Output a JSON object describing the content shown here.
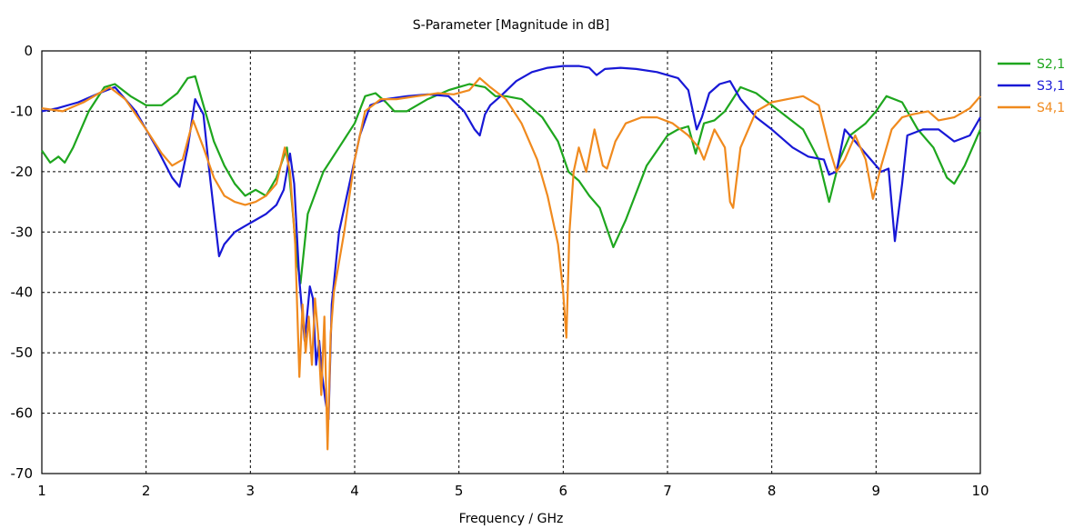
{
  "chart_data": {
    "type": "line",
    "title": "S-Parameter [Magnitude in dB]",
    "xlabel": "Frequency / GHz",
    "ylabel": "",
    "xlim": [
      1,
      10
    ],
    "ylim": [
      -70,
      0
    ],
    "xticks": [
      1,
      2,
      3,
      4,
      5,
      6,
      7,
      8,
      9,
      10
    ],
    "yticks": [
      0,
      -10,
      -20,
      -30,
      -40,
      -50,
      -60,
      -70
    ],
    "grid": true,
    "legend_position": "right",
    "series": [
      {
        "name": "S2,1",
        "color": "#1ea61e",
        "x": [
          1.0,
          1.08,
          1.16,
          1.22,
          1.3,
          1.45,
          1.6,
          1.7,
          1.85,
          2.0,
          2.15,
          2.3,
          2.4,
          2.47,
          2.55,
          2.65,
          2.75,
          2.85,
          2.95,
          3.05,
          3.15,
          3.25,
          3.35,
          3.45,
          3.48,
          3.55,
          3.7,
          3.85,
          4.0,
          4.1,
          4.2,
          4.3,
          4.38,
          4.5,
          4.7,
          4.9,
          5.1,
          5.25,
          5.35,
          5.45,
          5.6,
          5.8,
          5.95,
          6.05,
          6.15,
          6.25,
          6.35,
          6.48,
          6.6,
          6.8,
          7.0,
          7.1,
          7.2,
          7.27,
          7.35,
          7.45,
          7.55,
          7.7,
          7.85,
          8.0,
          8.15,
          8.3,
          8.45,
          8.55,
          8.65,
          8.75,
          8.9,
          9.0,
          9.1,
          9.25,
          9.4,
          9.55,
          9.68,
          9.75,
          9.85,
          10.0
        ],
        "y": [
          -16.5,
          -18.5,
          -17.5,
          -18.5,
          -16,
          -10,
          -6,
          -5.5,
          -7.5,
          -9,
          -9,
          -7,
          -4.5,
          -4.2,
          -9,
          -15,
          -19,
          -22,
          -24,
          -23,
          -24,
          -21,
          -16,
          -35,
          -38.5,
          -27,
          -20,
          -16,
          -12,
          -7.5,
          -7,
          -8.5,
          -10,
          -10,
          -8,
          -6.5,
          -5.5,
          -6,
          -7.5,
          -7.5,
          -8,
          -11,
          -15,
          -20,
          -21.5,
          -24,
          -26,
          -32.5,
          -28,
          -19,
          -14,
          -13,
          -12.5,
          -17,
          -12,
          -11.5,
          -10,
          -6,
          -7,
          -9,
          -11,
          -13,
          -18,
          -25,
          -18,
          -14,
          -12,
          -10,
          -7.5,
          -8.5,
          -13,
          -16,
          -21,
          -22,
          -19,
          -13
        ]
      },
      {
        "name": "S3,1",
        "color": "#1818d6",
        "x": [
          1.0,
          1.15,
          1.35,
          1.55,
          1.7,
          1.9,
          2.1,
          2.25,
          2.32,
          2.4,
          2.47,
          2.55,
          2.6,
          2.66,
          2.7,
          2.75,
          2.85,
          2.95,
          3.05,
          3.15,
          3.25,
          3.32,
          3.38,
          3.42,
          3.47,
          3.52,
          3.57,
          3.6,
          3.63,
          3.66,
          3.69,
          3.72,
          3.75,
          3.78,
          3.85,
          3.95,
          4.05,
          4.15,
          4.3,
          4.5,
          4.7,
          4.9,
          5.05,
          5.15,
          5.2,
          5.25,
          5.3,
          5.4,
          5.55,
          5.7,
          5.85,
          6.0,
          6.15,
          6.25,
          6.32,
          6.4,
          6.55,
          6.7,
          6.9,
          7.1,
          7.2,
          7.28,
          7.33,
          7.4,
          7.5,
          7.6,
          7.7,
          7.85,
          8.0,
          8.2,
          8.35,
          8.5,
          8.55,
          8.62,
          8.7,
          8.8,
          8.95,
          9.05,
          9.12,
          9.18,
          9.25,
          9.3,
          9.45,
          9.6,
          9.75,
          9.9,
          10.0
        ],
        "y": [
          -10,
          -9.5,
          -8.5,
          -7,
          -6,
          -10,
          -16,
          -21,
          -22.5,
          -16,
          -8,
          -10.5,
          -19,
          -28,
          -34,
          -32,
          -30,
          -29,
          -28,
          -27,
          -25.5,
          -23,
          -17,
          -22,
          -38,
          -48,
          -39,
          -41,
          -52,
          -48,
          -54,
          -58,
          -61,
          -42,
          -30,
          -22,
          -14,
          -9,
          -8,
          -7.5,
          -7.2,
          -7.5,
          -10,
          -13,
          -14,
          -10.5,
          -9,
          -7.5,
          -5,
          -3.5,
          -2.8,
          -2.5,
          -2.5,
          -2.8,
          -4,
          -3,
          -2.8,
          -3,
          -3.5,
          -4.5,
          -6.5,
          -13,
          -11,
          -7,
          -5.5,
          -5,
          -8,
          -11,
          -13,
          -16,
          -17.5,
          -18,
          -20.5,
          -20,
          -13,
          -15,
          -18,
          -20,
          -19.5,
          -31.5,
          -22,
          -14,
          -13,
          -13,
          -15,
          -14,
          -11
        ]
      },
      {
        "name": "S4,1",
        "color": "#f08a1e",
        "x": [
          1.0,
          1.2,
          1.4,
          1.55,
          1.65,
          1.8,
          2.0,
          2.15,
          2.25,
          2.35,
          2.45,
          2.55,
          2.65,
          2.75,
          2.85,
          2.95,
          3.05,
          3.15,
          3.25,
          3.33,
          3.38,
          3.43,
          3.47,
          3.5,
          3.53,
          3.56,
          3.59,
          3.62,
          3.65,
          3.68,
          3.71,
          3.74,
          3.77,
          3.8,
          3.9,
          4.0,
          4.1,
          4.25,
          4.4,
          4.6,
          4.8,
          4.95,
          5.1,
          5.2,
          5.3,
          5.45,
          5.6,
          5.75,
          5.85,
          5.95,
          6.0,
          6.03,
          6.06,
          6.1,
          6.15,
          6.22,
          6.3,
          6.38,
          6.42,
          6.5,
          6.6,
          6.75,
          6.9,
          7.05,
          7.2,
          7.3,
          7.35,
          7.45,
          7.55,
          7.6,
          7.63,
          7.7,
          7.85,
          8.0,
          8.15,
          8.3,
          8.45,
          8.55,
          8.62,
          8.7,
          8.8,
          8.9,
          8.97,
          9.05,
          9.15,
          9.25,
          9.35,
          9.5,
          9.6,
          9.75,
          9.9,
          10.0
        ],
        "y": [
          -9.5,
          -10,
          -8.5,
          -7,
          -6,
          -8,
          -13,
          -17,
          -19,
          -18,
          -11.5,
          -16,
          -21,
          -24,
          -25,
          -25.5,
          -25,
          -24,
          -22,
          -16,
          -20,
          -32,
          -54,
          -42,
          -50,
          -44,
          -52,
          -41,
          -47,
          -57,
          -44,
          -66,
          -47,
          -40,
          -30,
          -18,
          -10,
          -8,
          -8,
          -7.5,
          -7,
          -7.2,
          -6.5,
          -4.5,
          -6,
          -8,
          -12,
          -18,
          -24,
          -32,
          -40,
          -47.5,
          -30,
          -20,
          -16,
          -20,
          -13,
          -19,
          -19.5,
          -15,
          -12,
          -11,
          -11,
          -12,
          -14,
          -16,
          -18,
          -13,
          -16,
          -25,
          -26,
          -16,
          -10,
          -8.5,
          -8,
          -7.5,
          -9,
          -16,
          -20,
          -18,
          -14,
          -18,
          -24.5,
          -19,
          -13,
          -11,
          -10.5,
          -10,
          -11.5,
          -11,
          -9.5,
          -7.5
        ]
      }
    ]
  }
}
